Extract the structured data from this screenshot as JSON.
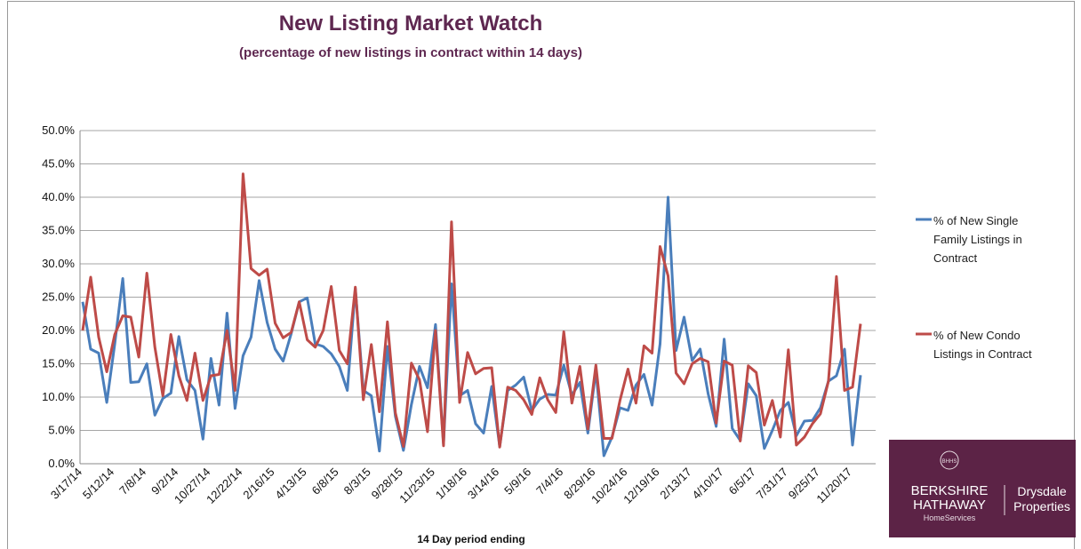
{
  "chart_data": {
    "type": "line",
    "title": "New Listing Market Watch",
    "subtitle": "(percentage of new listings in contract within 14 days)",
    "x_label": "14 Day period ending",
    "categories": [
      "3/17/14",
      null,
      null,
      null,
      "5/12/14",
      null,
      null,
      null,
      "7/8/14",
      null,
      null,
      null,
      "9/2/14",
      null,
      null,
      null,
      "10/27/14",
      null,
      null,
      null,
      "12/22/14",
      null,
      null,
      null,
      "2/16/15",
      null,
      null,
      null,
      "4/13/15",
      null,
      null,
      null,
      "6/8/15",
      null,
      null,
      null,
      "8/3/15",
      null,
      null,
      null,
      "9/28/15",
      null,
      null,
      null,
      "11/23/15",
      null,
      null,
      null,
      "1/18/16",
      null,
      null,
      null,
      "3/14/16",
      null,
      null,
      null,
      "5/9/16",
      null,
      null,
      null,
      "7/4/16",
      null,
      null,
      null,
      "8/29/16",
      null,
      null,
      null,
      "10/24/16",
      null,
      null,
      null,
      "12/19/16",
      null,
      null,
      null,
      "2/13/17",
      null,
      null,
      null,
      "4/10/17",
      null,
      null,
      null,
      "6/5/17",
      null,
      null,
      null,
      "7/31/17",
      null,
      null,
      null,
      "9/25/17",
      null,
      null,
      null,
      "11/20/17",
      null
    ],
    "series": [
      {
        "name": "% of New Single Family Listings in Contract",
        "color": "#4a7ebb",
        "values": [
          24.3,
          17.2,
          16.6,
          9.2,
          18,
          27.8,
          12.2,
          12.3,
          15,
          7.3,
          9.8,
          10.6,
          19.1,
          12.6,
          11,
          3.7,
          15.8,
          8.8,
          22.6,
          8.3,
          16.2,
          19,
          27.5,
          21.2,
          17.2,
          15.4,
          19.5,
          24.3,
          24.9,
          18,
          17.6,
          16.5,
          14.6,
          11,
          26.3,
          11,
          10.2,
          1.9,
          17.6,
          7.1,
          2,
          8.9,
          14.6,
          11.4,
          20.9,
          3,
          27,
          10.2,
          11,
          6,
          4.6,
          11.6,
          2.6,
          11,
          11.8,
          13,
          8,
          9.7,
          10.4,
          10.3,
          14.8,
          10.3,
          12.2,
          4.6,
          14,
          1.2,
          4,
          8.4,
          8,
          11.8,
          13.4,
          8.8,
          18,
          40,
          17,
          22,
          15.5,
          17.2,
          10.5,
          5.6,
          18.7,
          5.3,
          3.5,
          12,
          10.2,
          2.3,
          5,
          8,
          9.2,
          4.2,
          6.4,
          6.5,
          8.4,
          12.4,
          13.2,
          17.2,
          2.8,
          13.3
        ]
      },
      {
        "name": "% of New Condo Listings in Contract",
        "color": "#be4b48",
        "values": [
          20,
          28,
          19,
          13.8,
          19.4,
          22.2,
          22,
          16,
          28.6,
          17.5,
          10.2,
          19.4,
          13.2,
          9.5,
          16.6,
          9.5,
          13.2,
          13.4,
          20,
          11,
          43.5,
          29.3,
          28.3,
          29.2,
          21.1,
          18.9,
          19.7,
          24.3,
          18.6,
          17.5,
          20,
          26.6,
          17,
          15,
          26.5,
          9.6,
          17.9,
          7.8,
          21.3,
          7.6,
          2.6,
          15.1,
          12.6,
          4.8,
          20,
          2.7,
          36.3,
          9.2,
          16.7,
          13.5,
          14.3,
          14.4,
          2.5,
          11.5,
          11,
          9.6,
          7.4,
          12.9,
          9.6,
          7.7,
          19.8,
          9.1,
          14.6,
          5.2,
          14.8,
          3.8,
          3.8,
          9.5,
          14.2,
          9.1,
          17.7,
          16.6,
          32.6,
          28.2,
          13.6,
          12,
          15,
          15.8,
          15.3,
          6.1,
          15.4,
          14.8,
          3.4,
          14.7,
          13.7,
          5.8,
          9.5,
          4,
          17.1,
          2.8,
          4,
          6,
          7.5,
          12.4,
          28.1,
          11,
          11.5,
          21
        ]
      }
    ],
    "ylim": [
      0,
      50
    ],
    "yticks": [
      {
        "value": 0,
        "label": "0.0%"
      },
      {
        "value": 5,
        "label": "5.0%"
      },
      {
        "value": 10,
        "label": "10.0%"
      },
      {
        "value": 15,
        "label": "15.0%"
      },
      {
        "value": 20,
        "label": "20.0%"
      },
      {
        "value": 25,
        "label": "25.0%"
      },
      {
        "value": 30,
        "label": "30.0%"
      },
      {
        "value": 35,
        "label": "35.0%"
      },
      {
        "value": 40,
        "label": "40.0%"
      },
      {
        "value": 45,
        "label": "45.0%"
      },
      {
        "value": 50,
        "label": "50.0%"
      }
    ],
    "grid": true,
    "legend": "right"
  },
  "logo": {
    "emblem": "BHHS",
    "brand_line1": "BERKSHIRE",
    "brand_line2": "HATHAWAY",
    "brand_sub": "HomeServices",
    "partner_line1": "Drysdale",
    "partner_line2": "Properties"
  }
}
